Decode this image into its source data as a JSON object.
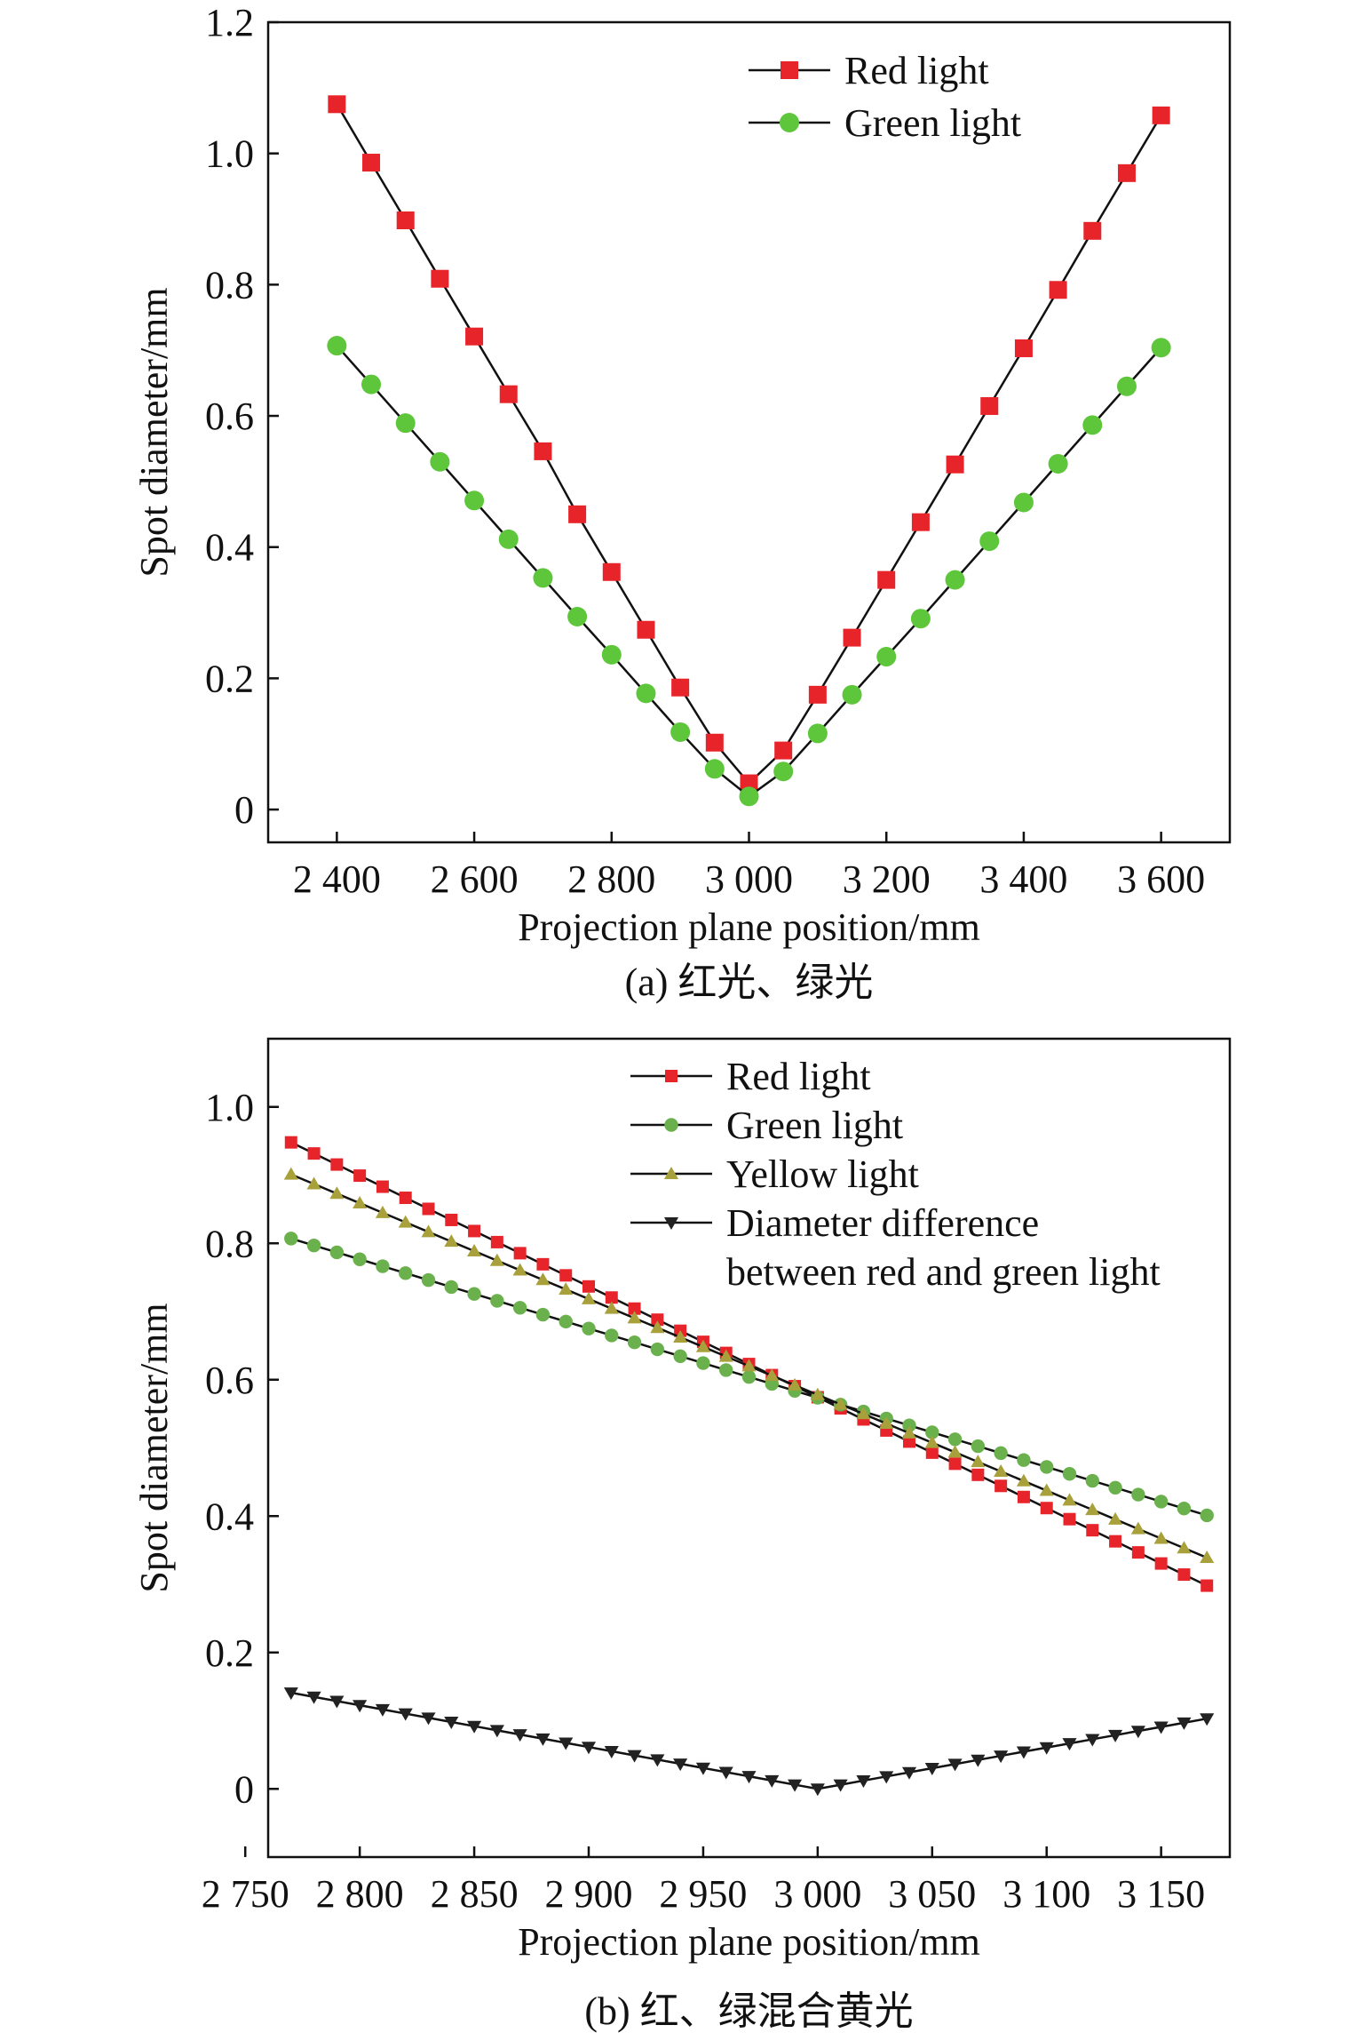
{
  "chart_data": [
    {
      "type": "line",
      "caption": "(a) 红光、绿光",
      "xlabel": "Projection plane position/mm",
      "ylabel": "Spot diameter/mm",
      "xlim": [
        2300,
        3700
      ],
      "ylim": [
        -0.05,
        1.2
      ],
      "xticks": [
        2400,
        2600,
        2800,
        3000,
        3200,
        3400,
        3600
      ],
      "xtick_labels": [
        "2 400",
        "2 600",
        "2 800",
        "3 000",
        "3 200",
        "3 400",
        "3 600"
      ],
      "yticks": [
        0,
        0.2,
        0.4,
        0.6,
        0.8,
        1.0,
        1.2
      ],
      "ytick_labels": [
        "0",
        "0.2",
        "0.4",
        "0.6",
        "0.8",
        "1.0",
        "1.2"
      ],
      "legend_position": "top-right",
      "grid": false,
      "x": [
        2400,
        2450,
        2500,
        2550,
        2600,
        2650,
        2700,
        2750,
        2800,
        2850,
        2900,
        2950,
        3000,
        3050,
        3100,
        3150,
        3200,
        3250,
        3300,
        3350,
        3400,
        3450,
        3500,
        3550,
        3600
      ],
      "series": [
        {
          "name": "Red light",
          "marker": "square",
          "color": "#e8242b",
          "values": [
            1.075,
            0.986,
            0.898,
            0.809,
            0.721,
            0.633,
            0.546,
            0.45,
            0.362,
            0.274,
            0.186,
            0.102,
            0.04,
            0.09,
            0.175,
            0.262,
            0.35,
            0.438,
            0.526,
            0.615,
            0.703,
            0.792,
            0.882,
            0.97,
            1.058
          ]
        },
        {
          "name": "Green light",
          "marker": "circle",
          "color": "#5dc63b",
          "values": [
            0.707,
            0.648,
            0.589,
            0.53,
            0.471,
            0.412,
            0.353,
            0.294,
            0.236,
            0.177,
            0.118,
            0.062,
            0.02,
            0.058,
            0.116,
            0.175,
            0.233,
            0.291,
            0.35,
            0.409,
            0.468,
            0.527,
            0.586,
            0.645,
            0.704
          ]
        }
      ]
    },
    {
      "type": "line",
      "caption": "(b) 红、绿混合黄光",
      "xlabel": "Projection plane position/mm",
      "ylabel": "Spot diameter/mm",
      "xlim": [
        2760,
        3180
      ],
      "ylim": [
        -0.1,
        1.1
      ],
      "xticks": [
        2750,
        2800,
        2850,
        2900,
        2950,
        3000,
        3050,
        3100,
        3150
      ],
      "xtick_labels": [
        "2 750",
        "2 800",
        "2 850",
        "2 900",
        "2 950",
        "3 000",
        "3 050",
        "3 100",
        "3 150"
      ],
      "yticks": [
        0,
        0.2,
        0.4,
        0.6,
        0.8,
        1.0
      ],
      "ytick_labels": [
        "0",
        "0.2",
        "0.4",
        "0.6",
        "0.8",
        "1.0"
      ],
      "legend_position": "top-right",
      "grid": false,
      "x_start": 2770,
      "x_step": 10,
      "x_end": 3170,
      "series": [
        {
          "name": "Red light",
          "marker": "square",
          "color": "#e8242b",
          "start": 0.948,
          "end": 0.298
        },
        {
          "name": "Green light",
          "marker": "circle",
          "color": "#6ab04c",
          "start": 0.807,
          "end": 0.401
        },
        {
          "name": "Yellow light",
          "marker": "triangle-up",
          "color": "#a8a03a",
          "start": 0.901,
          "end": 0.339
        },
        {
          "name": "Diameter difference",
          "name_line2": "between red and green light",
          "marker": "triangle-down",
          "color": "#222222",
          "start": 0.141,
          "min_x": 3000,
          "min_value": 0.0,
          "end": 0.103
        }
      ]
    }
  ]
}
